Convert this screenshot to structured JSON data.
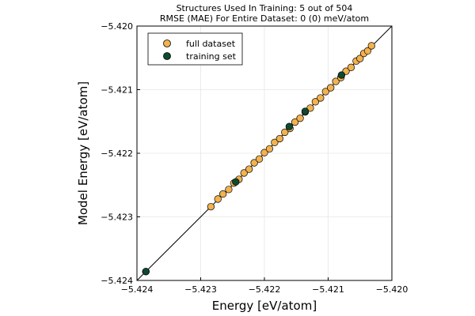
{
  "chart_data": {
    "type": "scatter",
    "title_lines": [
      "Structures Used In Training:  5 out of 504",
      "RMSE (MAE) For Entire Dataset:  0 (0) meV/atom"
    ],
    "xlabel": "Energy [eV/atom]",
    "ylabel": "Model Energy [eV/atom]",
    "xlim": [
      -5.424,
      -5.42
    ],
    "ylim": [
      -5.424,
      -5.42
    ],
    "xticks": [
      "−5.424",
      "−5.423",
      "−5.422",
      "−5.421",
      "−5.420"
    ],
    "yticks": [
      "−5.424",
      "−5.423",
      "−5.422",
      "−5.421",
      "−5.420"
    ],
    "tick_values": [
      -5.424,
      -5.423,
      -5.422,
      -5.421,
      -5.42
    ],
    "grid": true,
    "legend_position": "top-left",
    "identity_line": true,
    "colors": {
      "full_dataset": "#f2b24f",
      "training_set": "#0e4a30",
      "grid": "#e6e6e6",
      "line": "#000000"
    },
    "series": [
      {
        "name": "full dataset",
        "x": [
          -5.42386,
          -5.42284,
          -5.42273,
          -5.42265,
          -5.42256,
          -5.42248,
          -5.4224,
          -5.42232,
          -5.42224,
          -5.42216,
          -5.42208,
          -5.422,
          -5.42192,
          -5.42184,
          -5.42176,
          -5.42168,
          -5.4216,
          -5.42152,
          -5.42144,
          -5.42136,
          -5.42128,
          -5.4212,
          -5.42112,
          -5.42104,
          -5.42096,
          -5.42088,
          -5.4208,
          -5.42072,
          -5.42064,
          -5.42056,
          -5.4205,
          -5.42044,
          -5.42038,
          -5.42032
        ],
        "y": [
          -5.42386,
          -5.42284,
          -5.42272,
          -5.42264,
          -5.42257,
          -5.42247,
          -5.42241,
          -5.42231,
          -5.42225,
          -5.42215,
          -5.42209,
          -5.42199,
          -5.42193,
          -5.42183,
          -5.42177,
          -5.42167,
          -5.42161,
          -5.42151,
          -5.42145,
          -5.42135,
          -5.42129,
          -5.42119,
          -5.42113,
          -5.42103,
          -5.42097,
          -5.42087,
          -5.42081,
          -5.42071,
          -5.42065,
          -5.42055,
          -5.42051,
          -5.42043,
          -5.42039,
          -5.42031
        ]
      },
      {
        "name": "training set",
        "x": [
          -5.42386,
          -5.42245,
          -5.42161,
          -5.42136,
          -5.42079
        ],
        "y": [
          -5.42386,
          -5.42245,
          -5.42158,
          -5.42134,
          -5.42077
        ]
      }
    ]
  }
}
